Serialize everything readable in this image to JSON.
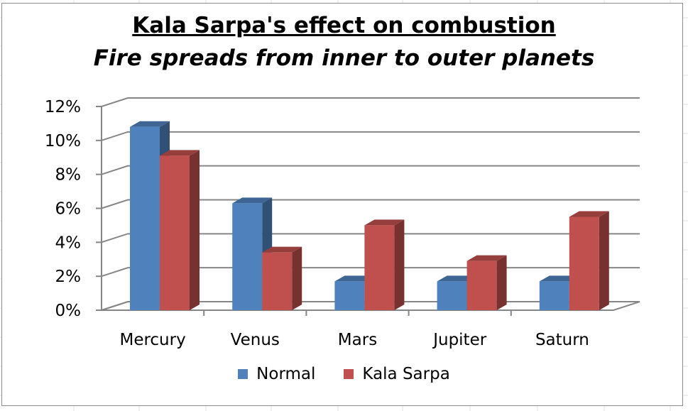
{
  "chart_data": {
    "type": "bar",
    "title": "Kala Sarpa's effect on combustion",
    "subtitle": "Fire spreads from inner to outer planets",
    "categories": [
      "Mercury",
      "Venus",
      "Mars",
      "Jupiter",
      "Saturn"
    ],
    "series": [
      {
        "name": "Normal",
        "color": "#4f81bd",
        "values": [
          0.108,
          0.063,
          0.017,
          0.017,
          0.017
        ]
      },
      {
        "name": "Kala Sarpa",
        "color": "#c0504d",
        "values": [
          0.091,
          0.034,
          0.05,
          0.029,
          0.055
        ]
      }
    ],
    "ylim": [
      0,
      0.12
    ],
    "y_ticks": [
      "0%",
      "2%",
      "4%",
      "6%",
      "8%",
      "10%",
      "12%"
    ],
    "grid": true,
    "style": "3d-clustered-column",
    "legend_position": "bottom"
  }
}
